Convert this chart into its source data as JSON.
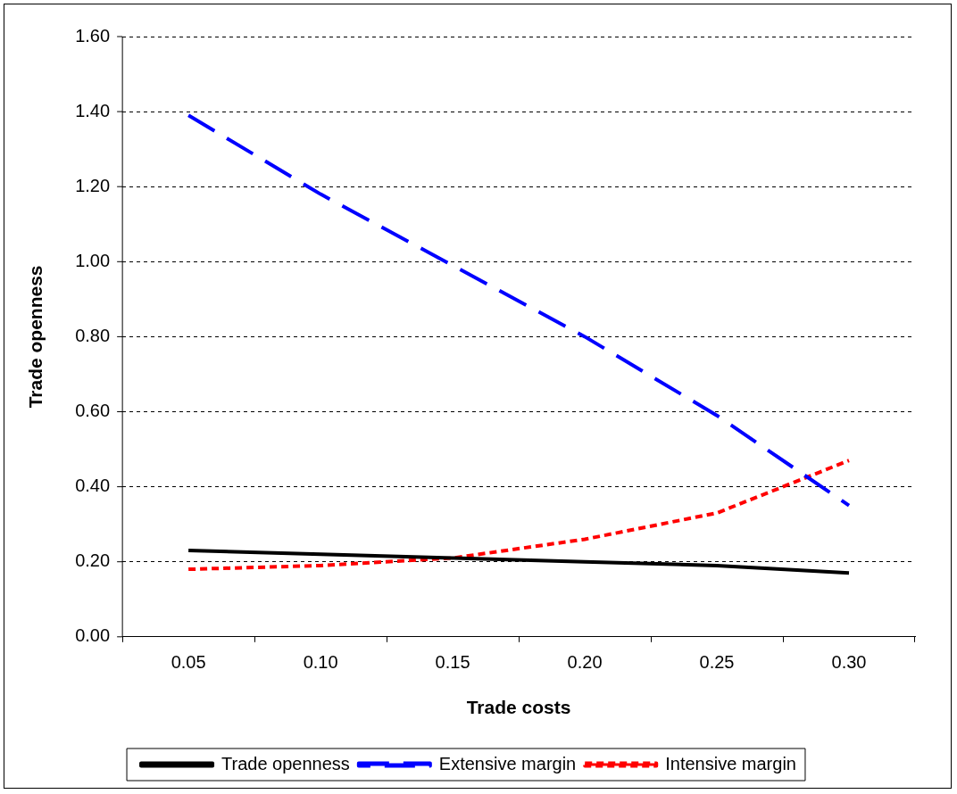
{
  "chart_data": {
    "type": "line",
    "xlabel": "Trade costs",
    "ylabel": "Trade openness",
    "categories": [
      "0.05",
      "0.10",
      "0.15",
      "0.20",
      "0.25",
      "0.30"
    ],
    "series": [
      {
        "name": "Trade openness",
        "color": "#000000",
        "line_style": "solid",
        "values": [
          0.23,
          0.22,
          0.21,
          0.2,
          0.19,
          0.17
        ]
      },
      {
        "name": "Extensive margin",
        "color": "#0000ff",
        "line_style": "dashed",
        "values": [
          1.39,
          1.18,
          0.99,
          0.8,
          0.59,
          0.35
        ]
      },
      {
        "name": "Intensive margin",
        "color": "#ff0000",
        "line_style": "dotted",
        "values": [
          0.18,
          0.19,
          0.21,
          0.26,
          0.33,
          0.47
        ]
      }
    ],
    "ylim": [
      0,
      1.6
    ],
    "yticks": [
      {
        "value": 0,
        "label": "0.00"
      },
      {
        "value": 0.2,
        "label": "0.20"
      },
      {
        "value": 0.4,
        "label": "0.40"
      },
      {
        "value": 0.6,
        "label": "0.60"
      },
      {
        "value": 0.8,
        "label": "0.80"
      },
      {
        "value": 1.0,
        "label": "1.00"
      },
      {
        "value": 1.2,
        "label": "1.20"
      },
      {
        "value": 1.4,
        "label": "1.40"
      },
      {
        "value": 1.6,
        "label": "1.60"
      }
    ],
    "grid": "y",
    "legend": "bottom",
    "marker": "none"
  }
}
